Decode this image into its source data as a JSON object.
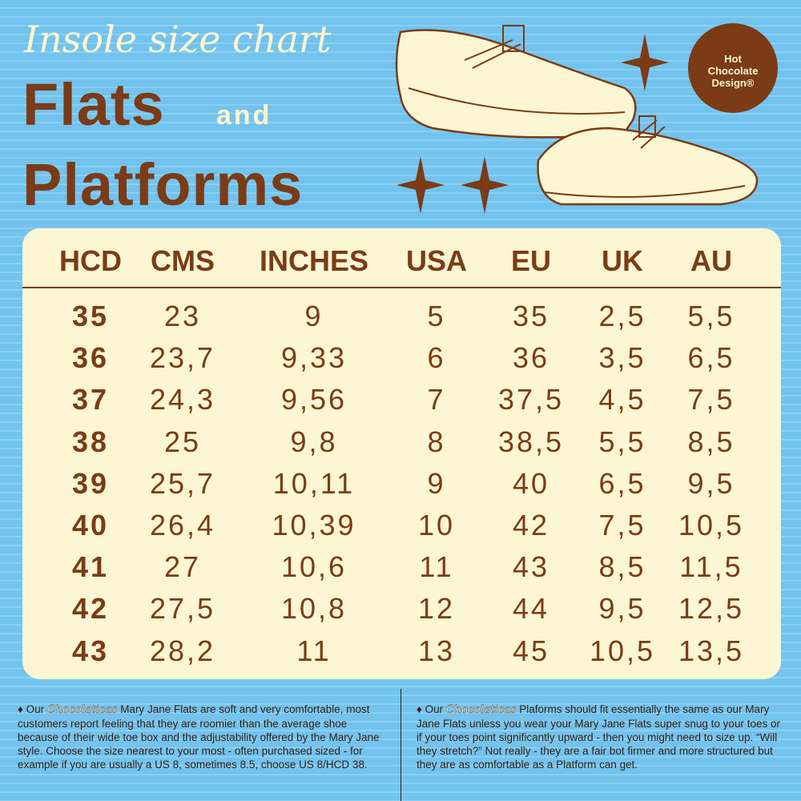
{
  "header": {
    "script_title": "Insole size chart",
    "title_1": "Flats",
    "connector": "and",
    "title_2": "Platforms"
  },
  "logo": {
    "lines": [
      "Hot",
      "Chocolate",
      "Design®"
    ]
  },
  "table": {
    "columns": [
      "HCD",
      "CMS",
      "INCHES",
      "USA",
      "EU",
      "UK",
      "AU"
    ],
    "rows": [
      [
        "35",
        "23",
        "9",
        "5",
        "35",
        "2,5",
        "5,5"
      ],
      [
        "36",
        "23,7",
        "9,33",
        "6",
        "36",
        "3,5",
        "6,5"
      ],
      [
        "37",
        "24,3",
        "9,56",
        "7",
        "37,5",
        "4,5",
        "7,5"
      ],
      [
        "38",
        "25",
        "9,8",
        "8",
        "38,5",
        "5,5",
        "8,5"
      ],
      [
        "39",
        "25,7",
        "10,11",
        "9",
        "40",
        "6,5",
        "9,5"
      ],
      [
        "40",
        "26,4",
        "10,39",
        "10",
        "42",
        "7,5",
        "10,5"
      ],
      [
        "41",
        "27",
        "10,6",
        "11",
        "43",
        "8,5",
        "11,5"
      ],
      [
        "42",
        "27,5",
        "10,8",
        "12",
        "44",
        "9,5",
        "12,5"
      ],
      [
        "43",
        "28,2",
        "11",
        "13",
        "45",
        "10,5",
        "13,5"
      ]
    ]
  },
  "notes": [
    {
      "prefix": "♦ Our",
      "brand": "Chocolaticas",
      "text": "Mary Jane Flats are soft and very comfortable, most customers report feeling that they are roomier than the average shoe because of their wide toe box and the adjustability offered by the Mary Jane style. Choose the size nearest to your most - often purchased sized - for example if you are usually a US 8, sometimes 8.5, choose US 8/HCD 38."
    },
    {
      "prefix": "♦ Our",
      "brand": "Chocolaticas",
      "text": "Plaforms should fit essentially the same as our Mary Jane Flats unless you wear your Mary Jane Flats super snug to your toes or if your toes point significantly upward - then you might need to size  up. “Will they stretch?” Not really - they are a fair bot firmer and more structured but they are as comfortable as a Platform can get."
    }
  ]
}
